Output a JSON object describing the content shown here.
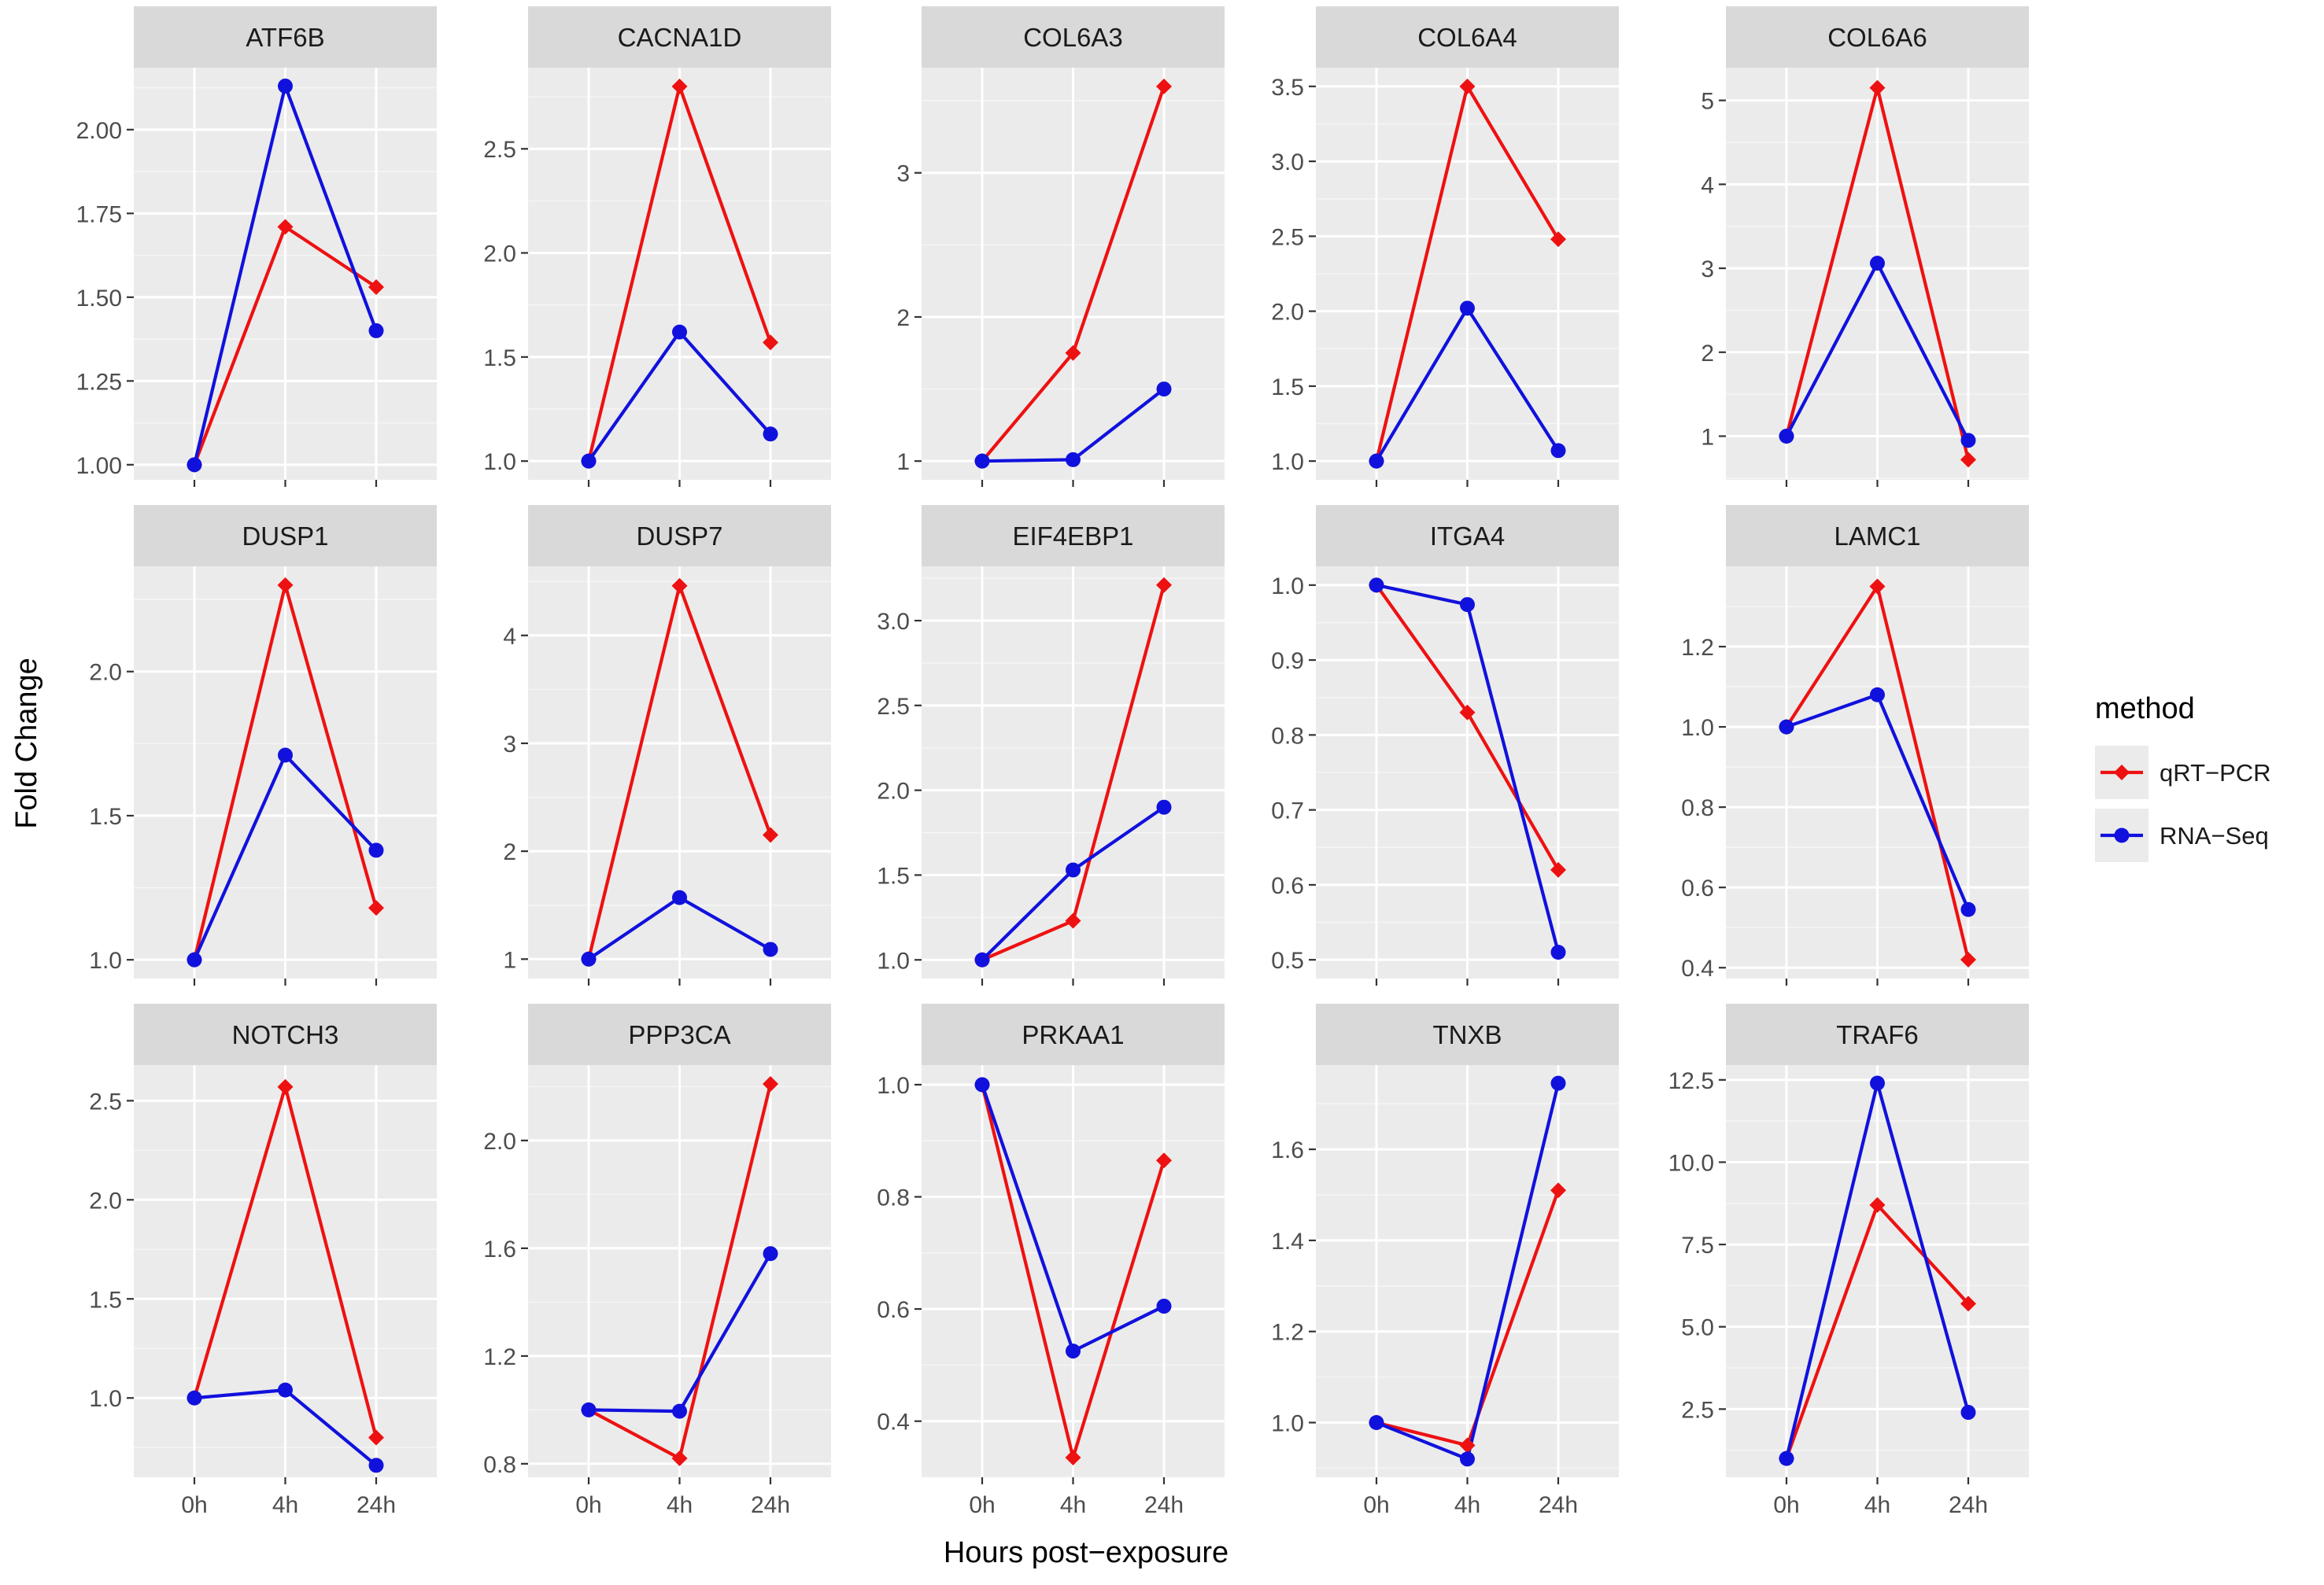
{
  "chart_data": {
    "type": "line",
    "facet": "wrap",
    "xlabel": "Hours post−exposure",
    "ylabel": "Fold Change",
    "categories": [
      "0h",
      "4h",
      "24h"
    ],
    "grid": true,
    "legend": {
      "title": "method",
      "position": "right",
      "entries": [
        {
          "name": "qRT−PCR",
          "color": "#ee1111",
          "marker": "diamond"
        },
        {
          "name": "RNA−Seq",
          "color": "#1111dd",
          "marker": "circle"
        }
      ]
    },
    "panels": [
      {
        "title": "ATF6B",
        "ylim": [
          0.955,
          2.185
        ],
        "yticks": [
          1.0,
          1.25,
          1.5,
          1.75,
          2.0
        ],
        "ytick_labels": [
          "1.00",
          "1.25",
          "1.50",
          "1.75",
          "2.00"
        ],
        "series": [
          {
            "name": "qRT−PCR",
            "values": [
              1.0,
              1.71,
              1.53
            ]
          },
          {
            "name": "RNA−Seq",
            "values": [
              1.0,
              2.13,
              1.4
            ]
          }
        ]
      },
      {
        "title": "CACNA1D",
        "ylim": [
          0.91,
          2.89
        ],
        "yticks": [
          1.0,
          1.5,
          2.0,
          2.5
        ],
        "ytick_labels": [
          "1.0",
          "1.5",
          "2.0",
          "2.5"
        ],
        "series": [
          {
            "name": "qRT−PCR",
            "values": [
              1.0,
              2.8,
              1.57
            ]
          },
          {
            "name": "RNA−Seq",
            "values": [
              1.0,
              1.62,
              1.13
            ]
          }
        ]
      },
      {
        "title": "COL6A3",
        "ylim": [
          0.87,
          3.73
        ],
        "yticks": [
          1,
          2,
          3
        ],
        "ytick_labels": [
          "1",
          "2",
          "3"
        ],
        "series": [
          {
            "name": "qRT−PCR",
            "values": [
              1.0,
              1.75,
              3.6
            ]
          },
          {
            "name": "RNA−Seq",
            "values": [
              1.0,
              1.01,
              1.5
            ]
          }
        ]
      },
      {
        "title": "COL6A4",
        "ylim": [
          0.875,
          3.625
        ],
        "yticks": [
          1.0,
          1.5,
          2.0,
          2.5,
          3.0,
          3.5
        ],
        "ytick_labels": [
          "1.0",
          "1.5",
          "2.0",
          "2.5",
          "3.0",
          "3.5"
        ],
        "series": [
          {
            "name": "qRT−PCR",
            "values": [
              1.0,
              3.5,
              2.48
            ]
          },
          {
            "name": "RNA−Seq",
            "values": [
              1.0,
              2.02,
              1.07
            ]
          }
        ]
      },
      {
        "title": "COL6A6",
        "ylim": [
          0.48,
          5.39
        ],
        "yticks": [
          1,
          2,
          3,
          4,
          5
        ],
        "ytick_labels": [
          "1",
          "2",
          "3",
          "4",
          "5"
        ],
        "series": [
          {
            "name": "qRT−PCR",
            "values": [
              1.0,
              5.15,
              0.72
            ]
          },
          {
            "name": "RNA−Seq",
            "values": [
              1.0,
              3.06,
              0.95
            ]
          }
        ]
      },
      {
        "title": "DUSP1",
        "ylim": [
          0.935,
          2.365
        ],
        "yticks": [
          1.0,
          1.5,
          2.0
        ],
        "ytick_labels": [
          "1.0",
          "1.5",
          "2.0"
        ],
        "series": [
          {
            "name": "qRT−PCR",
            "values": [
              1.0,
              2.3,
              1.18
            ]
          },
          {
            "name": "RNA−Seq",
            "values": [
              1.0,
              1.71,
              1.38
            ]
          }
        ]
      },
      {
        "title": "DUSP7",
        "ylim": [
          0.82,
          4.64
        ],
        "yticks": [
          1,
          2,
          3,
          4
        ],
        "ytick_labels": [
          "1",
          "2",
          "3",
          "4"
        ],
        "series": [
          {
            "name": "qRT−PCR",
            "values": [
              1.0,
              4.46,
              2.15
            ]
          },
          {
            "name": "RNA−Seq",
            "values": [
              1.0,
              1.57,
              1.09
            ]
          }
        ]
      },
      {
        "title": "EIF4EBP1",
        "ylim": [
          0.89,
          3.32
        ],
        "yticks": [
          1.0,
          1.5,
          2.0,
          2.5,
          3.0
        ],
        "ytick_labels": [
          "1.0",
          "1.5",
          "2.0",
          "2.5",
          "3.0"
        ],
        "series": [
          {
            "name": "qRT−PCR",
            "values": [
              1.0,
              1.23,
              3.21
            ]
          },
          {
            "name": "RNA−Seq",
            "values": [
              1.0,
              1.53,
              1.9
            ]
          }
        ]
      },
      {
        "title": "ITGA4",
        "ylim": [
          0.475,
          1.025
        ],
        "yticks": [
          0.5,
          0.6,
          0.7,
          0.8,
          0.9,
          1.0
        ],
        "ytick_labels": [
          "0.5",
          "0.6",
          "0.7",
          "0.8",
          "0.9",
          "1.0"
        ],
        "series": [
          {
            "name": "qRT−PCR",
            "values": [
              1.0,
              0.83,
              0.62
            ]
          },
          {
            "name": "RNA−Seq",
            "values": [
              1.0,
              0.974,
              0.51
            ]
          }
        ]
      },
      {
        "title": "LAMC1",
        "ylim": [
          0.373,
          1.4
        ],
        "yticks": [
          0.4,
          0.6,
          0.8,
          1.0,
          1.2
        ],
        "ytick_labels": [
          "0.4",
          "0.6",
          "0.8",
          "1.0",
          "1.2"
        ],
        "series": [
          {
            "name": "qRT−PCR",
            "values": [
              1.0,
              1.35,
              0.42
            ]
          },
          {
            "name": "RNA−Seq",
            "values": [
              1.0,
              1.08,
              0.545
            ]
          }
        ]
      },
      {
        "title": "NOTCH3",
        "ylim": [
          0.6,
          2.68
        ],
        "yticks": [
          1.0,
          1.5,
          2.0,
          2.5
        ],
        "ytick_labels": [
          "1.0",
          "1.5",
          "2.0",
          "2.5"
        ],
        "series": [
          {
            "name": "qRT−PCR",
            "values": [
              1.0,
              2.57,
              0.8
            ]
          },
          {
            "name": "RNA−Seq",
            "values": [
              1.0,
              1.04,
              0.66
            ]
          }
        ]
      },
      {
        "title": "PPP3CA",
        "ylim": [
          0.75,
          2.28
        ],
        "yticks": [
          0.8,
          1.2,
          1.6,
          2.0
        ],
        "ytick_labels": [
          "0.8",
          "1.2",
          "1.6",
          "2.0"
        ],
        "series": [
          {
            "name": "qRT−PCR",
            "values": [
              1.0,
              0.82,
              2.21
            ]
          },
          {
            "name": "RNA−Seq",
            "values": [
              1.0,
              0.995,
              1.58
            ]
          }
        ]
      },
      {
        "title": "PRKAA1",
        "ylim": [
          0.3,
          1.035
        ],
        "yticks": [
          0.4,
          0.6,
          0.8,
          1.0
        ],
        "ytick_labels": [
          "0.4",
          "0.6",
          "0.8",
          "1.0"
        ],
        "series": [
          {
            "name": "qRT−PCR",
            "values": [
              1.0,
              0.335,
              0.865
            ]
          },
          {
            "name": "RNA−Seq",
            "values": [
              1.0,
              0.525,
              0.605
            ]
          }
        ]
      },
      {
        "title": "TNXB",
        "ylim": [
          0.88,
          1.785
        ],
        "yticks": [
          1.0,
          1.2,
          1.4,
          1.6
        ],
        "ytick_labels": [
          "1.0",
          "1.2",
          "1.4",
          "1.6"
        ],
        "series": [
          {
            "name": "qRT−PCR",
            "values": [
              1.0,
              0.95,
              1.51
            ]
          },
          {
            "name": "RNA−Seq",
            "values": [
              1.0,
              0.92,
              1.745
            ]
          }
        ]
      },
      {
        "title": "TRAF6",
        "ylim": [
          0.43,
          12.95
        ],
        "yticks": [
          2.5,
          5.0,
          7.5,
          10.0,
          12.5
        ],
        "ytick_labels": [
          "2.5",
          "5.0",
          "7.5",
          "10.0",
          "12.5"
        ],
        "series": [
          {
            "name": "qRT−PCR",
            "values": [
              1.0,
              8.7,
              5.7
            ]
          },
          {
            "name": "RNA−Seq",
            "values": [
              1.0,
              12.4,
              2.4
            ]
          }
        ]
      }
    ]
  }
}
